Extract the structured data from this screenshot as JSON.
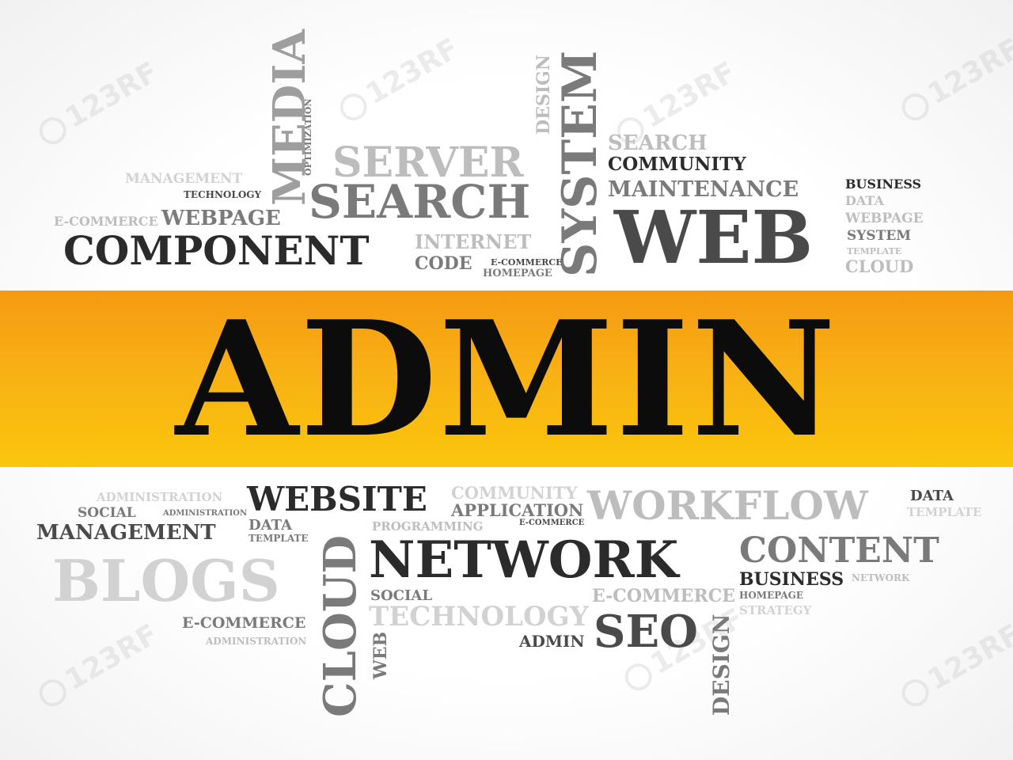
{
  "band": {
    "word": "ADMIN",
    "color": "#f8b014"
  },
  "watermark": {
    "text": "123RF"
  },
  "top_words": [
    "MEDIA",
    "OPTIMIZATION",
    "DESIGN",
    "SYSTEM",
    "SEARCH",
    "COMMUNITY",
    "SERVER",
    "MANAGEMENT",
    "TECHNOLOGY",
    "SEARCH",
    "MAINTENANCE",
    "BUSINESS",
    "DATA",
    "E-COMMERCE",
    "WEBPAGE",
    "WEB",
    "WEBPAGE",
    "SYSTEM",
    "COMPONENT",
    "INTERNET",
    "TEMPLATE",
    "CODE",
    "E-COMMERCE",
    "HOMEPAGE",
    "CLOUD"
  ],
  "bottom_words": [
    "ADMINISTRATION",
    "WEBSITE",
    "COMMUNITY",
    "WORKFLOW",
    "DATA",
    "SOCIAL",
    "APPLICATION",
    "ADMINISTRATION",
    "TEMPLATE",
    "MANAGEMENT",
    "DATA",
    "PROGRAMMING",
    "E-COMMERCE",
    "TEMPLATE",
    "CONTENT",
    "CLOUD",
    "NETWORK",
    "BLOGS",
    "BUSINESS",
    "NETWORK",
    "SOCIAL",
    "E-COMMERCE",
    "HOMEPAGE",
    "TECHNOLOGY",
    "STRATEGY",
    "E-COMMERCE",
    "WEB",
    "ADMIN",
    "SEO",
    "ADMINISTRATION",
    "DESIGN"
  ]
}
